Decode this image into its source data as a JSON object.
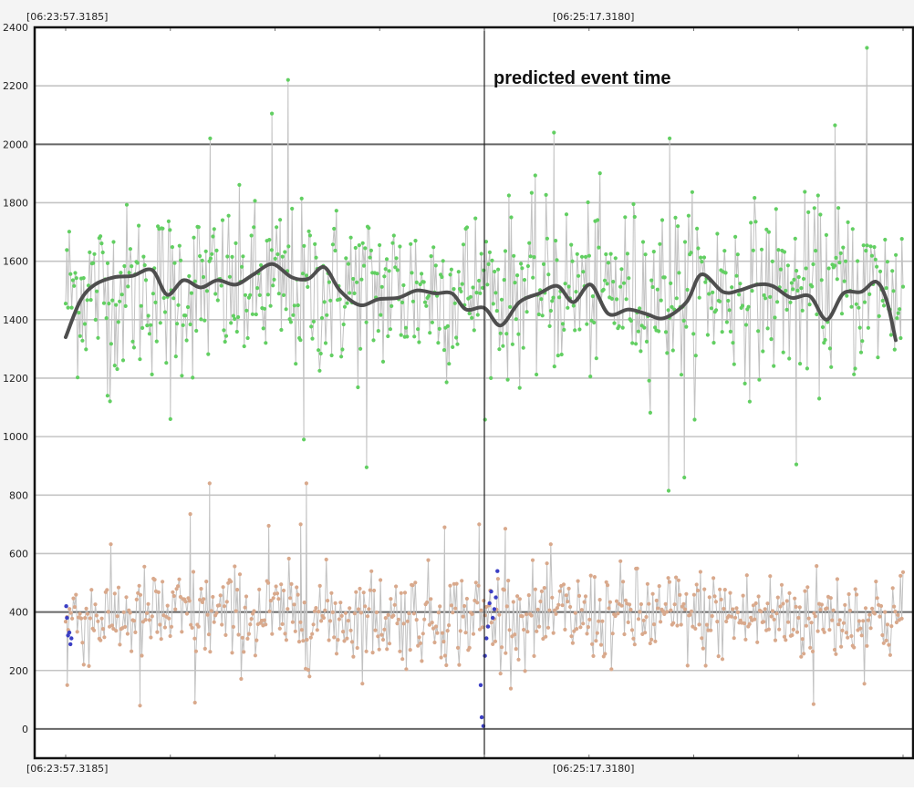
{
  "chart_data": {
    "type": "scatter",
    "title": "",
    "xlabel": "",
    "ylabel": "",
    "ylim": [
      -100,
      2400
    ],
    "y_ticks": [
      0,
      200,
      400,
      600,
      800,
      1000,
      1200,
      1400,
      1600,
      1800,
      2000,
      2200,
      2400
    ],
    "x_time_labels": {
      "top_left": "[06:23:57.3185]",
      "top_mid": "[06:25:17.3180]",
      "bottom_left": "[06:23:57.3185]",
      "bottom_mid": "[06:25:17.3180]"
    },
    "x_range_seconds": [
      0,
      160
    ],
    "event_time_seconds": 80,
    "annotation": "predicted event time",
    "grid": true,
    "legend": "none",
    "series": [
      {
        "kind": "upper-noisy-signal",
        "point_color": "#62cf62",
        "line_color": "#c2c2c2",
        "mean": 1500,
        "spread": 170,
        "n_points": 700,
        "outliers": [
          {
            "t": 42.5,
            "y": 2220
          },
          {
            "t": 39.4,
            "y": 2105
          },
          {
            "t": 27.6,
            "y": 2020
          },
          {
            "t": 153.1,
            "y": 2330
          },
          {
            "t": 147.0,
            "y": 2065
          },
          {
            "t": 93.3,
            "y": 2040
          },
          {
            "t": 115.4,
            "y": 2020
          },
          {
            "t": 45.5,
            "y": 990
          },
          {
            "t": 57.5,
            "y": 895
          },
          {
            "t": 115.2,
            "y": 815
          },
          {
            "t": 118.2,
            "y": 860
          },
          {
            "t": 139.6,
            "y": 905
          },
          {
            "t": 20.0,
            "y": 1060
          },
          {
            "t": 8.0,
            "y": 1140
          }
        ]
      },
      {
        "kind": "upper-smoothed-trend",
        "line_color": "#4e4e4e",
        "x": [
          0,
          2.8,
          5.6,
          9.2,
          12.8,
          16.5,
          19.4,
          22.5,
          25.8,
          29.0,
          32.5,
          35.9,
          39.5,
          43.2,
          46.4,
          49.4,
          52.4,
          56.2,
          59.8,
          63.6,
          67.1,
          70.6,
          73.8,
          76.5,
          80.0,
          83.1,
          86.7,
          90.5,
          94.0,
          97.0,
          100.3,
          103.7,
          107.5,
          110.9,
          114.3,
          118.6,
          121.5,
          125.6,
          128.7,
          132.2,
          135.1,
          138.6,
          142.2,
          145.4,
          148.6,
          152.0,
          154.8,
          156.8,
          158.6
        ],
        "values": [
          1340,
          1465,
          1520,
          1545,
          1550,
          1570,
          1485,
          1535,
          1510,
          1535,
          1520,
          1555,
          1590,
          1545,
          1540,
          1580,
          1500,
          1450,
          1470,
          1475,
          1500,
          1490,
          1490,
          1435,
          1440,
          1380,
          1460,
          1490,
          1515,
          1460,
          1520,
          1420,
          1435,
          1420,
          1405,
          1460,
          1555,
          1495,
          1500,
          1520,
          1515,
          1475,
          1480,
          1400,
          1490,
          1495,
          1530,
          1470,
          1330
        ]
      },
      {
        "kind": "lower-noisy-signal",
        "point_color": "#d9a98c",
        "line_color": "#c2c2c2",
        "mean": 385,
        "spread": 95,
        "n_points": 650,
        "outliers": [
          {
            "t": 27.5,
            "y": 840
          },
          {
            "t": 46.0,
            "y": 840
          },
          {
            "t": 23.8,
            "y": 735
          },
          {
            "t": 44.9,
            "y": 700
          },
          {
            "t": 38.8,
            "y": 695
          },
          {
            "t": 72.4,
            "y": 690
          },
          {
            "t": 79.0,
            "y": 700
          },
          {
            "t": 84.0,
            "y": 685
          },
          {
            "t": 14.2,
            "y": 80
          },
          {
            "t": 24.7,
            "y": 90
          },
          {
            "t": 142.9,
            "y": 85
          },
          {
            "t": 0.3,
            "y": 150
          }
        ]
      },
      {
        "kind": "lower-event-points",
        "point_color": "#3b3fc4",
        "x": [
          0.1,
          0.25,
          0.45,
          0.7,
          0.9,
          1.1,
          79.3,
          79.5,
          79.8,
          80.1,
          80.4,
          80.7,
          81.0,
          81.3,
          81.6,
          81.9,
          82.2,
          82.5
        ],
        "values": [
          420,
          380,
          320,
          330,
          290,
          310,
          150,
          40,
          10,
          250,
          310,
          350,
          430,
          470,
          380,
          410,
          450,
          540
        ]
      }
    ],
    "colors": {
      "frame": "#111111",
      "grid_major": "#666666",
      "grid_minor": "#c4c4c4",
      "event_line": "#222222"
    }
  }
}
